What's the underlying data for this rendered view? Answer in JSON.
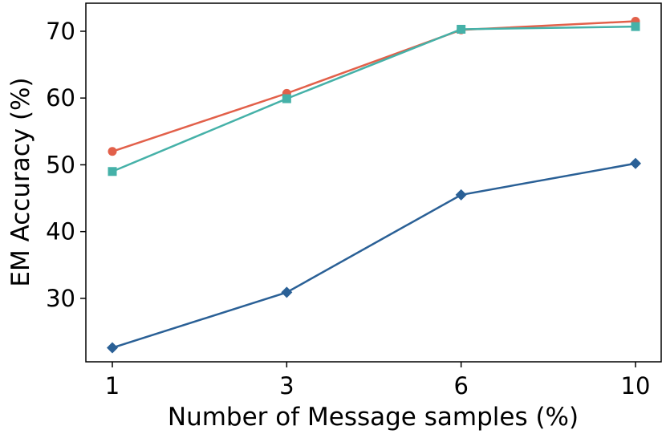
{
  "chart_data": {
    "type": "line",
    "title": "",
    "xlabel": "Number of Message samples (%)",
    "ylabel": "EM Accuracy (%)",
    "categories": [
      "1",
      "3",
      "6",
      "10"
    ],
    "ylim": [
      20.5,
      74.2
    ],
    "yticks": [
      30,
      40,
      50,
      60,
      70
    ],
    "grid": false,
    "legend": "none",
    "series": [
      {
        "color": "#e2604a",
        "marker": "circle",
        "values": [
          52.0,
          60.7,
          70.2,
          71.5
        ]
      },
      {
        "color": "#45b1a8",
        "marker": "square",
        "values": [
          49.0,
          59.9,
          70.3,
          70.7
        ]
      },
      {
        "color": "#2a6096",
        "marker": "diamond",
        "values": [
          22.6,
          30.9,
          45.5,
          50.2
        ]
      }
    ]
  }
}
